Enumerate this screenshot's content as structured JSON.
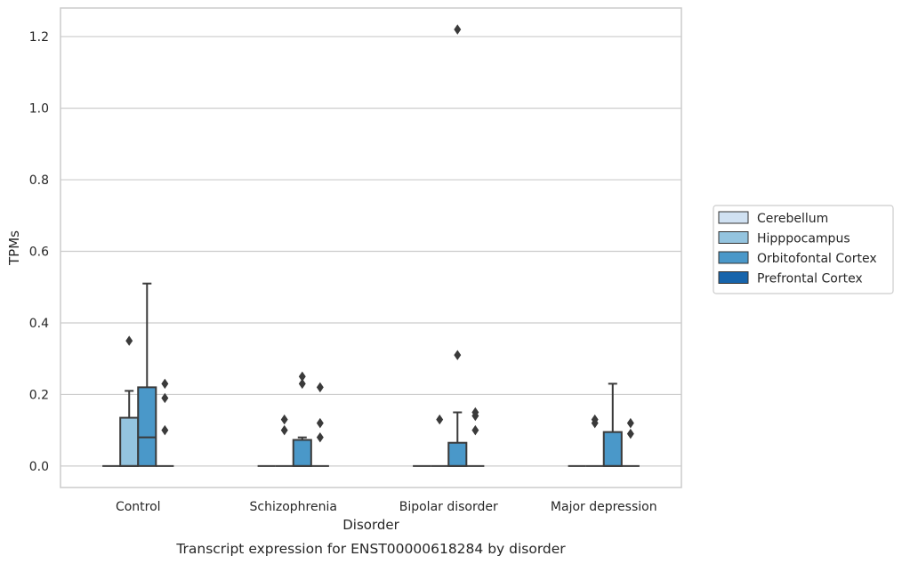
{
  "chart_data": {
    "type": "box",
    "title": "",
    "caption": "Transcript expression for ENST00000618284 by disorder",
    "xlabel": "Disorder",
    "ylabel": "TPMs",
    "ylim": [
      -0.06,
      1.28
    ],
    "yticks": [
      0.0,
      0.2,
      0.4,
      0.6,
      0.8,
      1.0,
      1.2
    ],
    "ytick_labels": [
      "0.0",
      "0.2",
      "0.4",
      "0.6",
      "0.8",
      "1.0",
      "1.2"
    ],
    "grid": true,
    "legend_position": "right",
    "categories": [
      "Control",
      "Schizophrenia",
      "Bipolar disorder",
      "Major depression"
    ],
    "series": [
      {
        "name": "Cerebellum",
        "color": "#d0e1f2",
        "boxes": [
          {
            "q1": 0,
            "median": 0,
            "q3": 0,
            "whisker_low": 0,
            "whisker_high": 0,
            "outliers": []
          },
          {
            "q1": 0,
            "median": 0,
            "q3": 0,
            "whisker_low": 0,
            "whisker_high": 0,
            "outliers": []
          },
          {
            "q1": 0,
            "median": 0,
            "q3": 0,
            "whisker_low": 0,
            "whisker_high": 0,
            "outliers": []
          },
          {
            "q1": 0,
            "median": 0,
            "q3": 0,
            "whisker_low": 0,
            "whisker_high": 0,
            "outliers": []
          }
        ]
      },
      {
        "name": "Hipppocampus",
        "color": "#94c4df",
        "boxes": [
          {
            "q1": 0,
            "median": 0,
            "q3": 0.135,
            "whisker_low": 0,
            "whisker_high": 0.21,
            "outliers": [
              0.35
            ]
          },
          {
            "q1": 0,
            "median": 0,
            "q3": 0,
            "whisker_low": 0,
            "whisker_high": 0,
            "outliers": [
              0.1,
              0.13
            ]
          },
          {
            "q1": 0,
            "median": 0,
            "q3": 0,
            "whisker_low": 0,
            "whisker_high": 0,
            "outliers": [
              0.13
            ]
          },
          {
            "q1": 0,
            "median": 0,
            "q3": 0,
            "whisker_low": 0,
            "whisker_high": 0,
            "outliers": [
              0.12,
              0.13
            ]
          }
        ]
      },
      {
        "name": "Orbitofontal Cortex",
        "color": "#4a98c9",
        "boxes": [
          {
            "q1": 0,
            "median": 0.08,
            "q3": 0.22,
            "whisker_low": 0,
            "whisker_high": 0.51,
            "outliers": []
          },
          {
            "q1": 0,
            "median": 0,
            "q3": 0.073,
            "whisker_low": 0,
            "whisker_high": 0.08,
            "outliers": [
              0.23,
              0.25
            ]
          },
          {
            "q1": 0,
            "median": 0,
            "q3": 0.065,
            "whisker_low": 0,
            "whisker_high": 0.15,
            "outliers": [
              0.31,
              1.22
            ]
          },
          {
            "q1": 0,
            "median": 0,
            "q3": 0.095,
            "whisker_low": 0,
            "whisker_high": 0.23,
            "outliers": []
          }
        ]
      },
      {
        "name": "Prefrontal Cortex",
        "color": "#1764ab",
        "boxes": [
          {
            "q1": 0,
            "median": 0,
            "q3": 0,
            "whisker_low": 0,
            "whisker_high": 0,
            "outliers": [
              0.1,
              0.19,
              0.23
            ]
          },
          {
            "q1": 0,
            "median": 0,
            "q3": 0,
            "whisker_low": 0,
            "whisker_high": 0,
            "outliers": [
              0.08,
              0.12,
              0.22
            ]
          },
          {
            "q1": 0,
            "median": 0,
            "q3": 0,
            "whisker_low": 0,
            "whisker_high": 0,
            "outliers": [
              0.1,
              0.14,
              0.15
            ]
          },
          {
            "q1": 0,
            "median": 0,
            "q3": 0,
            "whisker_low": 0,
            "whisker_high": 0,
            "outliers": [
              0.09,
              0.12
            ]
          }
        ]
      }
    ]
  }
}
